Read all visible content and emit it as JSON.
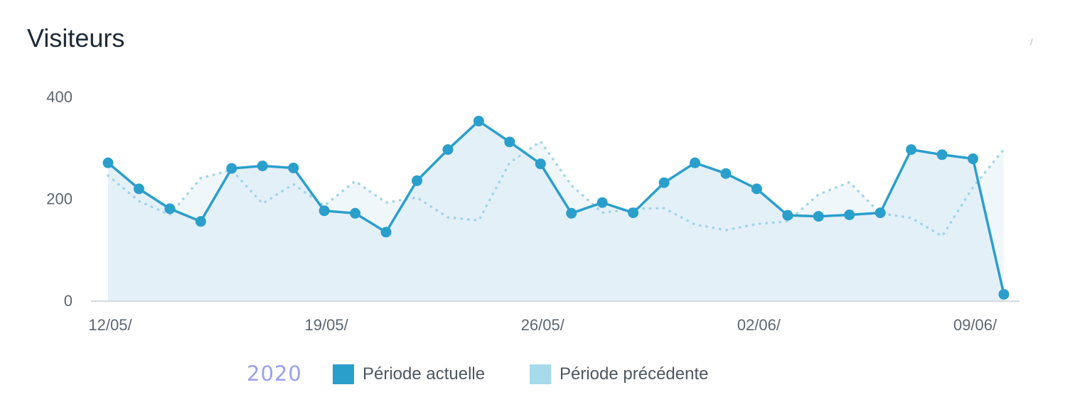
{
  "header": {
    "title": "Visiteurs",
    "corner_mark": "/"
  },
  "colors": {
    "current": "#2a9fcb",
    "previous": "#9fd5e9",
    "current_fill": "#e4f0f8",
    "previous_fill": "#f0f7fb",
    "axis": "#d3d8de"
  },
  "legend": {
    "year": "2020",
    "items": [
      {
        "label": "Période actuelle",
        "color": "#2a9fcb"
      },
      {
        "label": "Période précédente",
        "color": "#a6dbec"
      }
    ]
  },
  "chart_data": {
    "type": "line",
    "title": "Visiteurs",
    "xlabel": "",
    "ylabel": "",
    "ylim": [
      0,
      400
    ],
    "yticks": [
      0,
      200,
      400
    ],
    "grid": false,
    "legend_position": "bottom",
    "x": [
      "12/05/",
      "13/05/",
      "14/05/",
      "15/05/",
      "16/05/",
      "17/05/",
      "18/05/",
      "19/05/",
      "20/05/",
      "21/05/",
      "22/05/",
      "23/05/",
      "24/05/",
      "25/05/",
      "26/05/",
      "27/05/",
      "28/05/",
      "29/05/",
      "30/05/",
      "31/05/",
      "01/06/",
      "02/06/",
      "03/06/",
      "04/06/",
      "05/06/",
      "06/06/",
      "07/06/",
      "08/06/",
      "09/06/",
      "10/06/"
    ],
    "xticks": [
      "12/05/",
      "19/05/",
      "26/05/",
      "02/06/",
      "09/06/"
    ],
    "series": [
      {
        "name": "Période actuelle",
        "style": "solid",
        "markers": true,
        "values": [
          270,
          219,
          180,
          155,
          259,
          264,
          260,
          176,
          171,
          134,
          235,
          296,
          352,
          311,
          268,
          171,
          192,
          172,
          231,
          270,
          249,
          219,
          167,
          165,
          168,
          172,
          296,
          286,
          278,
          12
        ]
      },
      {
        "name": "Période précédente",
        "style": "dotted",
        "markers": false,
        "values": [
          245,
          195,
          168,
          240,
          256,
          190,
          228,
          186,
          234,
          192,
          202,
          163,
          157,
          270,
          312,
          226,
          172,
          180,
          181,
          149,
          138,
          150,
          155,
          208,
          232,
          171,
          162,
          126,
          222,
          297
        ]
      }
    ]
  }
}
